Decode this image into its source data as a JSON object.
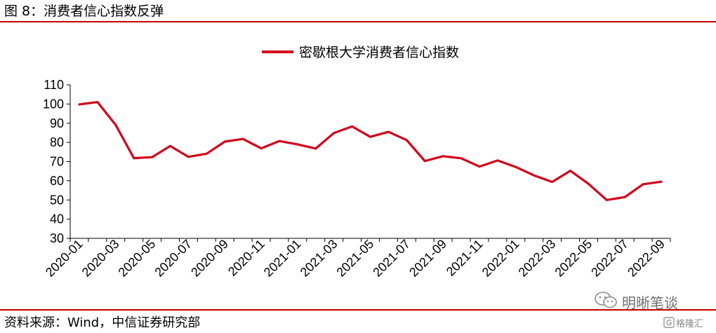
{
  "figure_title": "图 8：消费者信心指数反弹",
  "source": "资料来源：Wind，中信证券研究部",
  "watermark": {
    "text": "明晰笔谈",
    "icon": "wechat-icon"
  },
  "badge": {
    "text": "格隆汇",
    "icon": "g-logo-icon"
  },
  "colors": {
    "accent": "#c00000",
    "line": "#d0021b"
  },
  "chart_data": {
    "type": "line",
    "title": "",
    "xlabel": "",
    "ylabel": "",
    "ylim": [
      30,
      110
    ],
    "yticks": [
      30,
      40,
      50,
      60,
      70,
      80,
      90,
      100,
      110
    ],
    "grid": false,
    "legend_position": "top-center",
    "x_ticks": [
      "2020-01",
      "2020-03",
      "2020-05",
      "2020-07",
      "2020-09",
      "2020-11",
      "2021-01",
      "2021-03",
      "2021-05",
      "2021-07",
      "2021-09",
      "2021-11",
      "2022-01",
      "2022-03",
      "2022-05",
      "2022-07",
      "2022-09"
    ],
    "series": [
      {
        "name": "密歇根大学消费者信心指数",
        "x": [
          "2020-01",
          "2020-02",
          "2020-03",
          "2020-04",
          "2020-05",
          "2020-06",
          "2020-07",
          "2020-08",
          "2020-09",
          "2020-10",
          "2020-11",
          "2020-12",
          "2021-01",
          "2021-02",
          "2021-03",
          "2021-04",
          "2021-05",
          "2021-06",
          "2021-07",
          "2021-08",
          "2021-09",
          "2021-10",
          "2021-11",
          "2021-12",
          "2022-01",
          "2022-02",
          "2022-03",
          "2022-04",
          "2022-05",
          "2022-06",
          "2022-07",
          "2022-08",
          "2022-09"
        ],
        "values": [
          99.8,
          101.0,
          89.1,
          71.8,
          72.3,
          78.1,
          72.5,
          74.1,
          80.4,
          81.8,
          76.9,
          80.7,
          79.0,
          76.8,
          84.9,
          88.3,
          82.9,
          85.5,
          81.2,
          70.3,
          72.8,
          71.7,
          67.4,
          70.6,
          67.2,
          62.8,
          59.4,
          65.2,
          58.4,
          50.0,
          51.5,
          58.2,
          59.5
        ]
      }
    ]
  }
}
